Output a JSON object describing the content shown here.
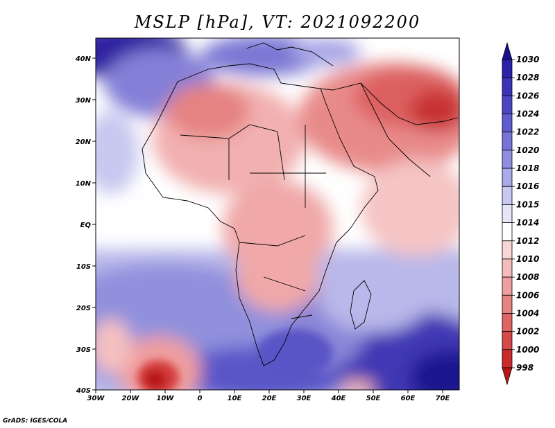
{
  "title": "MSLP [hPa], VT: 2021092200",
  "credit": "GrADS: IGES/COLA",
  "map": {
    "lat_ticks": [
      "40N",
      "30N",
      "20N",
      "10N",
      "EQ",
      "10S",
      "20S",
      "30S",
      "40S"
    ],
    "lon_ticks": [
      "30W",
      "20W",
      "10W",
      "0",
      "10E",
      "20E",
      "30E",
      "40E",
      "50E",
      "60E",
      "70E"
    ]
  },
  "colorbar": {
    "labels": [
      "1030",
      "1028",
      "1026",
      "1024",
      "1022",
      "1020",
      "1018",
      "1016",
      "1015",
      "1014",
      "1012",
      "1010",
      "1008",
      "1006",
      "1004",
      "1002",
      "1000",
      "998"
    ],
    "colors": [
      "#1a0f8f",
      "#2a22a8",
      "#3b34b8",
      "#4c46c4",
      "#5f5ccf",
      "#7774d8",
      "#908ee0",
      "#aaaae8",
      "#c8c8f0",
      "#e6e6f8",
      "#ffffff",
      "#f9d6d6",
      "#f5bcbc",
      "#eea0a0",
      "#e68383",
      "#df6565",
      "#d74848",
      "#cc2b2b",
      "#b81616"
    ]
  }
}
